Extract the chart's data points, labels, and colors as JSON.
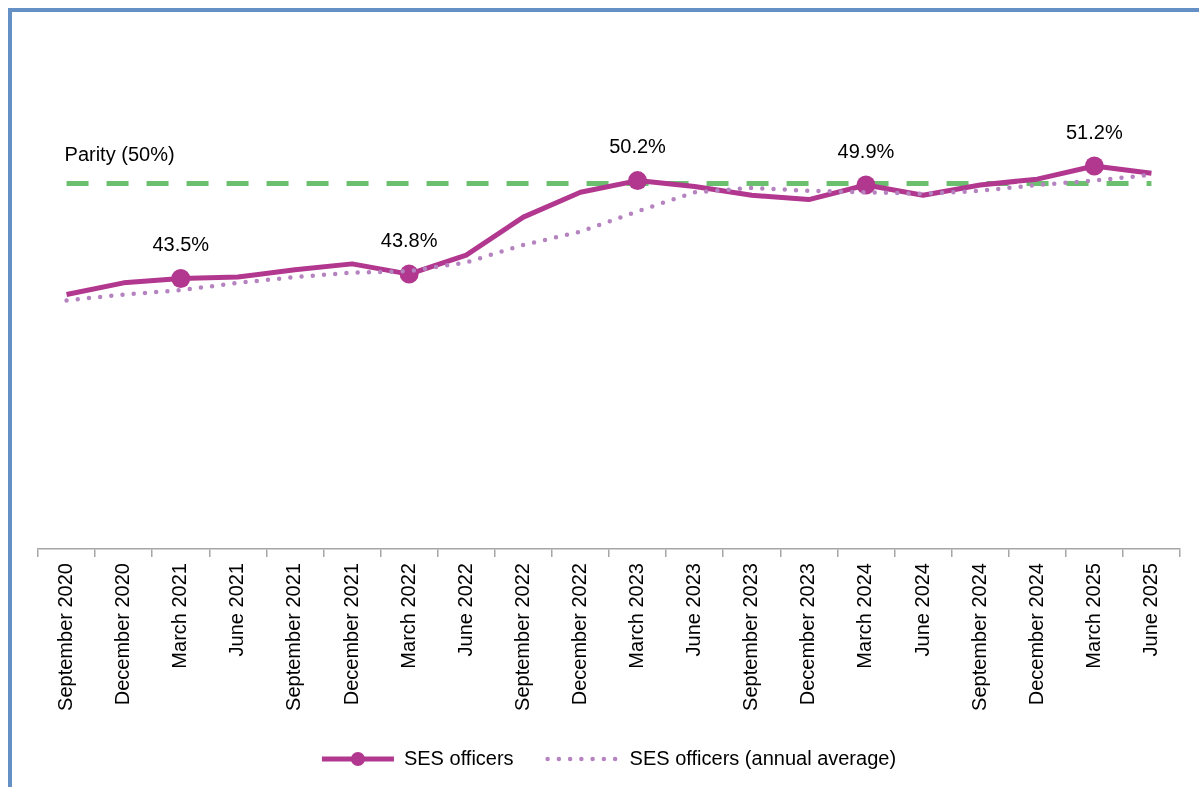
{
  "chart_data": {
    "type": "line",
    "categories": [
      "September 2020",
      "December 2020",
      "March 2021",
      "June 2021",
      "September 2021",
      "December 2021",
      "March 2022",
      "June 2022",
      "September 2022",
      "December 2022",
      "March 2023",
      "June 2023",
      "September 2023",
      "December 2023",
      "March 2024",
      "June 2024",
      "September 2024",
      "December 2024",
      "March 2025",
      "June 2025"
    ],
    "series": [
      {
        "name": "SES officers",
        "color": "#b1378f",
        "line_style": "solid",
        "values": [
          42.4,
          43.2,
          43.5,
          43.6,
          44.1,
          44.5,
          43.8,
          45.1,
          47.7,
          49.4,
          50.2,
          49.8,
          49.2,
          48.9,
          49.9,
          49.2,
          49.9,
          50.3,
          51.2,
          50.7
        ]
      },
      {
        "type": "scatter",
        "color": "#b1378f",
        "marker": "circle",
        "x": [
          "March 2021",
          "March 2022",
          "March 2023",
          "March 2024",
          "March 2025"
        ],
        "values": [
          43.5,
          43.8,
          50.2,
          49.9,
          51.2
        ],
        "value_labels": [
          "43.5%",
          "43.8%",
          "50.2%",
          "49.9%",
          "51.2%"
        ]
      },
      {
        "name": "SES officers (annual average)",
        "color": "#b584c0",
        "line_style": "dotted",
        "values": [
          42.0,
          42.4,
          42.7,
          43.2,
          43.6,
          43.9,
          44.0,
          44.6,
          45.8,
          46.7,
          48.1,
          49.4,
          49.7,
          49.5,
          49.4,
          49.3,
          49.5,
          49.9,
          50.2,
          50.6
        ]
      }
    ],
    "tick_labels": "x",
    "legend": "bottom",
    "ref_lines": [
      {
        "axis": "y",
        "value": 50,
        "label": "Parity (50%)",
        "color": "#6dbf70",
        "line_style": "dashed"
      }
    ]
  }
}
